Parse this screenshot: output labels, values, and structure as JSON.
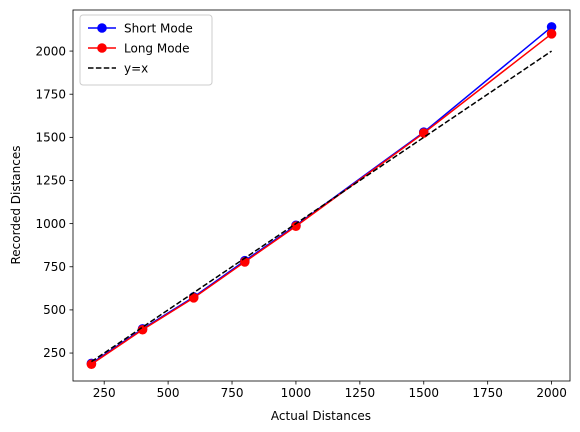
{
  "chart_data": {
    "type": "line",
    "title": "",
    "xlabel": "Actual Distances",
    "ylabel": "Recorded Distances",
    "xlim": [
      128,
      2072
    ],
    "ylim": [
      88,
      2238
    ],
    "xticks": [
      250,
      500,
      750,
      1000,
      1250,
      1500,
      1750,
      2000
    ],
    "yticks": [
      250,
      500,
      750,
      1000,
      1250,
      1500,
      1750,
      2000
    ],
    "grid": false,
    "legend_position": "top-left",
    "series": [
      {
        "name": "Short Mode",
        "color": "#0000ff",
        "marker": "circle",
        "linestyle": "solid",
        "x": [
          200,
          400,
          600,
          800,
          1000,
          1500,
          2000
        ],
        "y": [
          190,
          390,
          575,
          785,
          990,
          1530,
          2140
        ]
      },
      {
        "name": "Long Mode",
        "color": "#ff0000",
        "marker": "circle",
        "linestyle": "solid",
        "x": [
          200,
          400,
          600,
          800,
          1000,
          1500,
          2000
        ],
        "y": [
          185,
          385,
          570,
          778,
          985,
          1525,
          2100
        ]
      },
      {
        "name": "y=x",
        "color": "#000000",
        "marker": "none",
        "linestyle": "dashed",
        "x": [
          200,
          2000
        ],
        "y": [
          200,
          2000
        ]
      }
    ]
  }
}
